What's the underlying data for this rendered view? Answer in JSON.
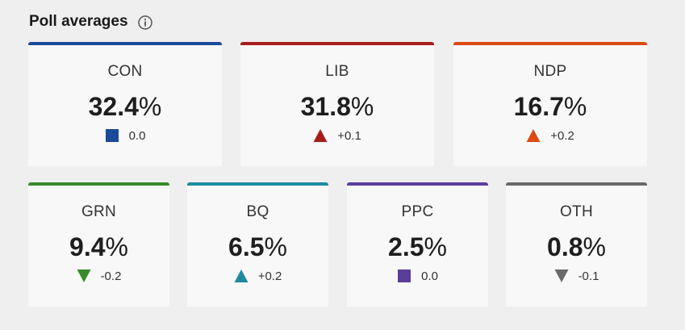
{
  "header": {
    "title": "Poll averages",
    "info_icon": "info-circle-icon"
  },
  "cards": [
    {
      "party": "CON",
      "pct": "32.4",
      "pct_symbol": "%",
      "change": "0.0",
      "trend": "none",
      "color": "#1a4a9a"
    },
    {
      "party": "LIB",
      "pct": "31.8",
      "pct_symbol": "%",
      "change": "+0.1",
      "trend": "up",
      "color": "#a81c1c"
    },
    {
      "party": "NDP",
      "pct": "16.7",
      "pct_symbol": "%",
      "change": "+0.2",
      "trend": "up",
      "color": "#de4a14"
    },
    {
      "party": "GRN",
      "pct": "9.4",
      "pct_symbol": "%",
      "change": "-0.2",
      "trend": "down",
      "color": "#3a8a2a"
    },
    {
      "party": "BQ",
      "pct": "6.5",
      "pct_symbol": "%",
      "change": "+0.2",
      "trend": "up",
      "color": "#1e8aa0"
    },
    {
      "party": "PPC",
      "pct": "2.5",
      "pct_symbol": "%",
      "change": "0.0",
      "trend": "none",
      "color": "#5a3f9a"
    },
    {
      "party": "OTH",
      "pct": "0.8",
      "pct_symbol": "%",
      "change": "-0.1",
      "trend": "down",
      "color": "#6a6a6a"
    }
  ]
}
